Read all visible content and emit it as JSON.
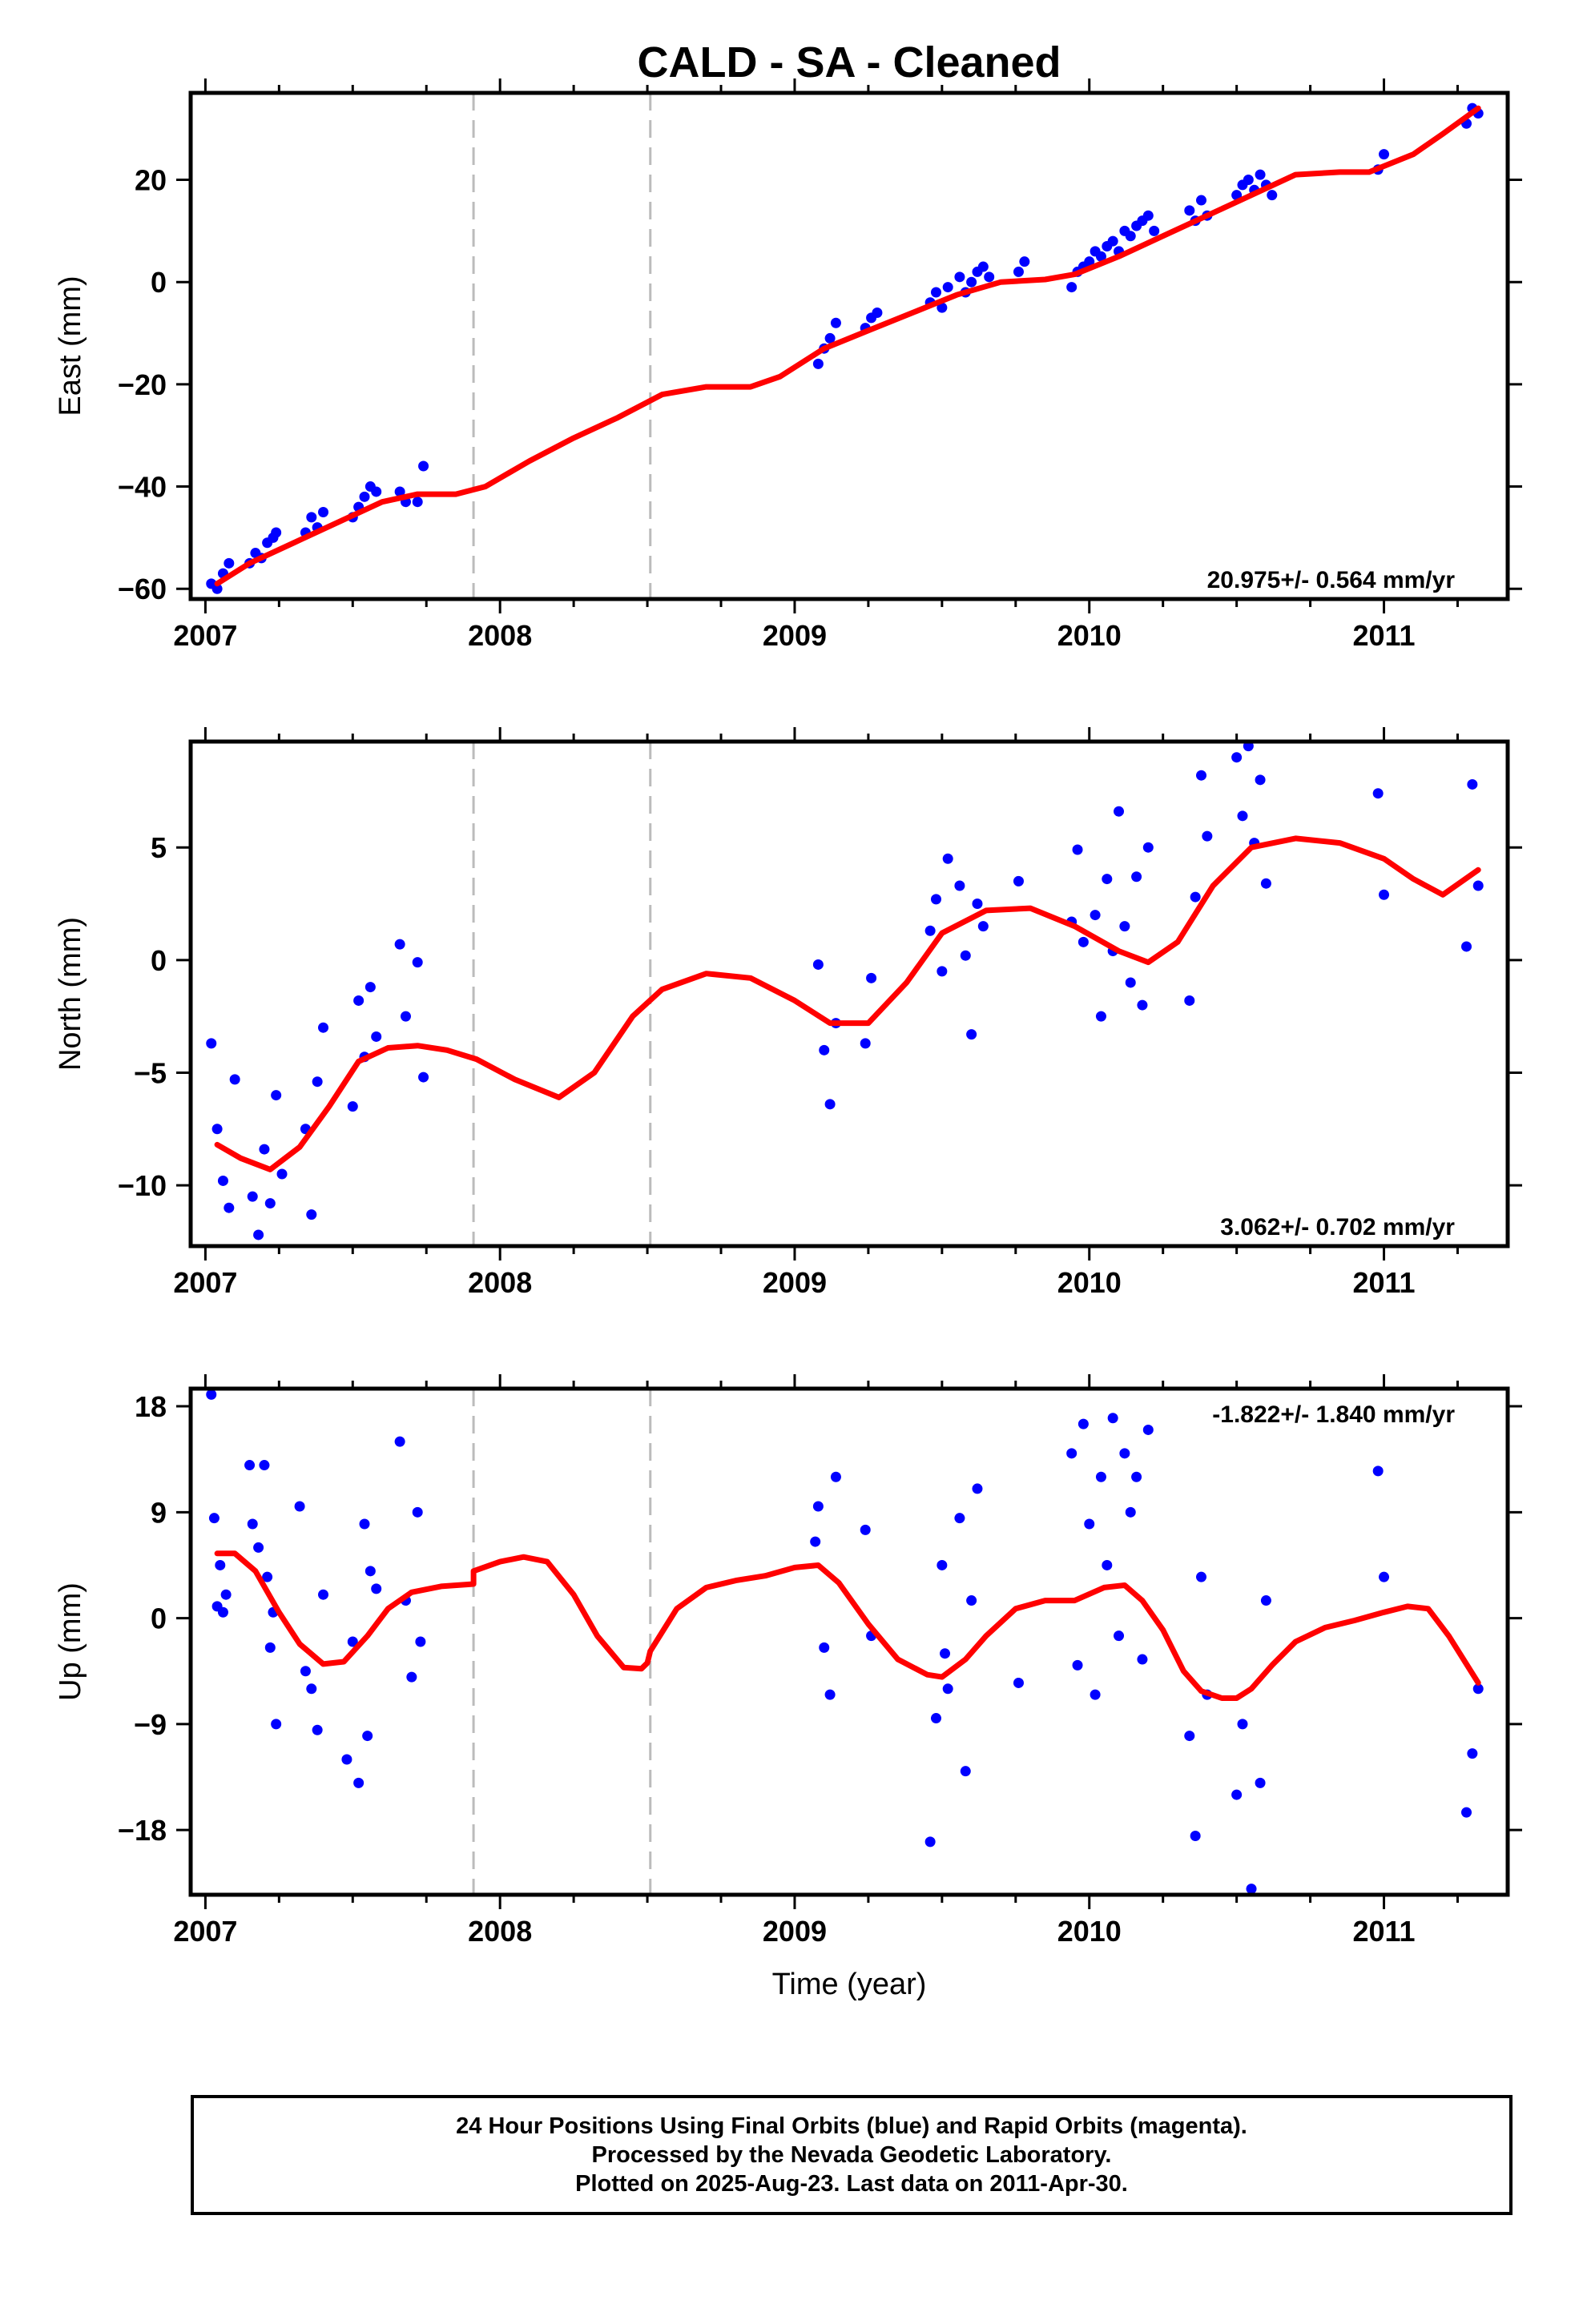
{
  "title": "CALD  - SA - Cleaned",
  "colors": {
    "fit": "#ff0000",
    "final_orbits": "#0000ff",
    "rapid_orbits": "#ff00ff",
    "frame": "#000000",
    "event_line": "#bbbbbb"
  },
  "caption": {
    "line1": "24 Hour Positions Using Final Orbits (blue) and Rapid Orbits (magenta).",
    "line2": "Processed by the Nevada Geodetic Laboratory.",
    "line3": "Plotted on 2025-Aug-23. Last data on 2011-Apr-30."
  },
  "chart_data": [
    {
      "type": "scatter",
      "title": "CALD  - SA - Cleaned",
      "ylabel": "East (mm)",
      "xlabel": "",
      "xlim": [
        2006.95,
        2011.42
      ],
      "ylim": [
        -62,
        37
      ],
      "x_ticks": [
        "2007",
        "2008",
        "2009",
        "2010",
        "2011"
      ],
      "y_ticks": [
        "20",
        "0",
        "−20",
        "−40",
        "−60"
      ],
      "y_tick_values": [
        20,
        0,
        -20,
        -40,
        -60
      ],
      "rate_label": "20.975+/- 0.564 mm/yr",
      "rate_label_position": "bottom-right",
      "event_lines": [
        2007.91,
        2008.51
      ],
      "model": {
        "name": "",
        "x": [
          2007.04,
          2007.15,
          2007.3,
          2007.45,
          2007.6,
          2007.72,
          2007.85,
          2007.95,
          2008.1,
          2008.25,
          2008.4,
          2008.55,
          2008.7,
          2008.85,
          2008.95,
          2009.1,
          2009.25,
          2009.4,
          2009.55,
          2009.7,
          2009.85,
          2009.95,
          2010.1,
          2010.25,
          2010.4,
          2010.55,
          2010.7,
          2010.85,
          2010.95,
          2011.1,
          2011.2,
          2011.32
        ],
        "y": [
          -59,
          -55,
          -51,
          -47,
          -43,
          -41.5,
          -41.5,
          -40,
          -35,
          -30.5,
          -26.5,
          -22,
          -20.5,
          -20.5,
          -18.5,
          -13,
          -9.5,
          -6,
          -2.5,
          0,
          0.5,
          1.5,
          5,
          9,
          13,
          17,
          21,
          21.5,
          21.5,
          25,
          29,
          34
        ]
      },
      "series": [
        {
          "name": "",
          "x": [
            2007.02,
            2007.04,
            2007.06,
            2007.08,
            2007.15,
            2007.17,
            2007.19,
            2007.21,
            2007.23,
            2007.24,
            2007.34,
            2007.36,
            2007.38,
            2007.4,
            2007.5,
            2007.52,
            2007.54,
            2007.56,
            2007.58,
            2007.66,
            2007.68,
            2007.72,
            2007.74,
            2009.08,
            2009.1,
            2009.12,
            2009.14,
            2009.24,
            2009.26,
            2009.28,
            2009.46,
            2009.48,
            2009.5,
            2009.52,
            2009.56,
            2009.58,
            2009.6,
            2009.62,
            2009.64,
            2009.66,
            2009.76,
            2009.78,
            2009.94,
            2009.96,
            2009.98,
            2010.0,
            2010.02,
            2010.04,
            2010.06,
            2010.08,
            2010.1,
            2010.12,
            2010.14,
            2010.16,
            2010.18,
            2010.2,
            2010.22,
            2010.34,
            2010.36,
            2010.38,
            2010.4,
            2010.5,
            2010.52,
            2010.54,
            2010.56,
            2010.58,
            2010.6,
            2010.62,
            2010.98,
            2011.0,
            2011.28,
            2011.3,
            2011.32
          ],
          "y": [
            -59,
            -60,
            -57,
            -55,
            -55,
            -53,
            -54,
            -51,
            -50,
            -49,
            -49,
            -46,
            -48,
            -45,
            -46,
            -44,
            -42,
            -40,
            -41,
            -41,
            -43,
            -43,
            -36,
            -16,
            -13,
            -11,
            -8,
            -9,
            -7,
            -6,
            -4,
            -2,
            -5,
            -1,
            1,
            -2,
            0,
            2,
            3,
            1,
            2,
            4,
            -1,
            2,
            3,
            4,
            6,
            5,
            7,
            8,
            6,
            10,
            9,
            11,
            12,
            13,
            10,
            14,
            12,
            16,
            13,
            17,
            19,
            20,
            18,
            21,
            19,
            17,
            22,
            25,
            31,
            34,
            33
          ]
        }
      ]
    },
    {
      "type": "scatter",
      "ylabel": "North (mm)",
      "xlabel": "",
      "xlim": [
        2006.95,
        2011.42
      ],
      "ylim": [
        -12.7,
        9.7
      ],
      "x_ticks": [
        "2007",
        "2008",
        "2009",
        "2010",
        "2011"
      ],
      "y_ticks": [
        "5",
        "0",
        "−5",
        "−10"
      ],
      "y_tick_values": [
        5,
        0,
        -5,
        -10
      ],
      "rate_label": "3.062+/- 0.702 mm/yr",
      "rate_label_position": "bottom-right",
      "event_lines": [
        2007.91,
        2008.51
      ],
      "model": {
        "name": "",
        "x": [
          2007.04,
          2007.12,
          2007.22,
          2007.32,
          2007.42,
          2007.52,
          2007.62,
          2007.72,
          2007.82,
          2007.92,
          2008.05,
          2008.2,
          2008.32,
          2008.45,
          2008.55,
          2008.7,
          2008.85,
          2009.0,
          2009.12,
          2009.25,
          2009.38,
          2009.5,
          2009.65,
          2009.8,
          2009.95,
          2010.1,
          2010.2,
          2010.3,
          2010.42,
          2010.55,
          2010.7,
          2010.85,
          2011.0,
          2011.1,
          2011.2,
          2011.32
        ],
        "y": [
          -8.2,
          -8.8,
          -9.3,
          -8.3,
          -6.5,
          -4.5,
          -3.9,
          -3.8,
          -4.0,
          -4.4,
          -5.3,
          -6.1,
          -5.0,
          -2.5,
          -1.3,
          -0.6,
          -0.8,
          -1.8,
          -2.8,
          -2.8,
          -1.0,
          1.2,
          2.2,
          2.3,
          1.5,
          0.4,
          -0.1,
          0.8,
          3.3,
          5.0,
          5.4,
          5.2,
          4.5,
          3.6,
          2.9,
          4.0
        ]
      },
      "series": [
        {
          "name": "",
          "x": [
            2007.02,
            2007.04,
            2007.06,
            2007.08,
            2007.1,
            2007.16,
            2007.18,
            2007.2,
            2007.22,
            2007.24,
            2007.26,
            2007.34,
            2007.36,
            2007.38,
            2007.4,
            2007.5,
            2007.52,
            2007.54,
            2007.56,
            2007.58,
            2007.66,
            2007.68,
            2007.72,
            2007.74,
            2009.08,
            2009.1,
            2009.12,
            2009.14,
            2009.24,
            2009.26,
            2009.46,
            2009.48,
            2009.5,
            2009.52,
            2009.56,
            2009.58,
            2009.6,
            2009.62,
            2009.64,
            2009.76,
            2009.94,
            2009.96,
            2009.98,
            2010.02,
            2010.04,
            2010.06,
            2010.08,
            2010.1,
            2010.12,
            2010.14,
            2010.16,
            2010.18,
            2010.2,
            2010.34,
            2010.36,
            2010.38,
            2010.4,
            2010.5,
            2010.52,
            2010.54,
            2010.56,
            2010.58,
            2010.6,
            2010.98,
            2011.0,
            2011.28,
            2011.3,
            2011.32
          ],
          "y": [
            -3.7,
            -7.5,
            -9.8,
            -11.0,
            -5.3,
            -10.5,
            -12.2,
            -8.4,
            -10.8,
            -6.0,
            -9.5,
            -7.5,
            -11.3,
            -5.4,
            -3.0,
            -6.5,
            -1.8,
            -4.3,
            -1.2,
            -3.4,
            0.7,
            -2.5,
            -0.1,
            -5.2,
            -0.2,
            -4.0,
            -6.4,
            -2.8,
            -3.7,
            -0.8,
            1.3,
            2.7,
            -0.5,
            4.5,
            3.3,
            0.2,
            -3.3,
            2.5,
            1.5,
            3.5,
            1.7,
            4.9,
            0.8,
            2.0,
            -2.5,
            3.6,
            0.4,
            6.6,
            1.5,
            -1.0,
            3.7,
            -2.0,
            5.0,
            -1.8,
            2.8,
            8.2,
            5.5,
            9.0,
            6.4,
            9.5,
            5.2,
            8.0,
            3.4,
            7.4,
            2.9,
            0.6,
            7.8,
            3.3
          ]
        }
      ]
    },
    {
      "type": "scatter",
      "ylabel": "Up (mm)",
      "xlabel": "Time (year)",
      "xlim": [
        2006.95,
        2011.42
      ],
      "ylim": [
        -23.5,
        19.5
      ],
      "x_ticks": [
        "2007",
        "2008",
        "2009",
        "2010",
        "2011"
      ],
      "y_ticks": [
        "18",
        "9",
        "0",
        "−9",
        "−18"
      ],
      "y_tick_values": [
        18,
        9,
        0,
        -9,
        -18
      ],
      "rate_label": "-1.822+/- 1.840 mm/yr",
      "rate_label_position": "top-right",
      "event_lines": [
        2007.91,
        2008.51
      ],
      "model": {
        "name": "",
        "x": [
          2007.04,
          2007.1,
          2007.17,
          2007.25,
          2007.32,
          2007.4,
          2007.47,
          2007.55,
          2007.62,
          2007.7,
          2007.8,
          2007.91,
          2007.91,
          2008.0,
          2008.08,
          2008.16,
          2008.25,
          2008.33,
          2008.42,
          2008.48,
          2008.5,
          2008.51,
          2008.6,
          2008.7,
          2008.8,
          2008.9,
          2009.0,
          2009.08,
          2009.15,
          2009.25,
          2009.35,
          2009.45,
          2009.5,
          2009.58,
          2009.65,
          2009.75,
          2009.85,
          2009.95,
          2010.05,
          2010.12,
          2010.18,
          2010.25,
          2010.32,
          2010.38,
          2010.45,
          2010.5,
          2010.55,
          2010.62,
          2010.7,
          2010.8,
          2010.9,
          2011.0,
          2011.08,
          2011.15,
          2011.22,
          2011.32
        ],
        "y": [
          5.5,
          5.5,
          4.0,
          0.5,
          -2.2,
          -3.9,
          -3.7,
          -1.5,
          0.8,
          2.2,
          2.7,
          2.9,
          4.0,
          4.8,
          5.2,
          4.8,
          2.0,
          -1.5,
          -4.2,
          -4.3,
          -3.8,
          -2.8,
          0.8,
          2.6,
          3.2,
          3.6,
          4.3,
          4.5,
          3.0,
          -0.5,
          -3.5,
          -4.8,
          -5.0,
          -3.5,
          -1.5,
          0.8,
          1.5,
          1.5,
          2.6,
          2.8,
          1.5,
          -1.0,
          -4.5,
          -6.2,
          -6.8,
          -6.8,
          -6.0,
          -4.0,
          -2.0,
          -0.8,
          -0.2,
          0.5,
          1.0,
          0.8,
          -1.5,
          -5.5
        ]
      },
      "series": [
        {
          "name": "",
          "x": [
            2007.02,
            2007.03,
            2007.04,
            2007.05,
            2007.06,
            2007.07,
            2007.15,
            2007.16,
            2007.18,
            2007.2,
            2007.21,
            2007.22,
            2007.23,
            2007.24,
            2007.32,
            2007.34,
            2007.36,
            2007.38,
            2007.4,
            2007.48,
            2007.5,
            2007.52,
            2007.54,
            2007.55,
            2007.56,
            2007.58,
            2007.66,
            2007.68,
            2007.7,
            2007.72,
            2007.73,
            2009.07,
            2009.08,
            2009.1,
            2009.12,
            2009.14,
            2009.24,
            2009.26,
            2009.46,
            2009.48,
            2009.5,
            2009.51,
            2009.52,
            2009.56,
            2009.58,
            2009.6,
            2009.62,
            2009.76,
            2009.94,
            2009.96,
            2009.98,
            2010.0,
            2010.02,
            2010.04,
            2010.06,
            2010.08,
            2010.1,
            2010.12,
            2010.14,
            2010.16,
            2010.18,
            2010.2,
            2010.34,
            2010.36,
            2010.38,
            2010.4,
            2010.5,
            2010.52,
            2010.55,
            2010.58,
            2010.6,
            2010.98,
            2011.0,
            2011.28,
            2011.3,
            2011.32
          ],
          "y": [
            19.0,
            8.5,
            1.0,
            4.5,
            0.5,
            2.0,
            13.0,
            8.0,
            6.0,
            13.0,
            3.5,
            -2.5,
            0.5,
            -9.0,
            9.5,
            -4.5,
            -6.0,
            -9.5,
            2.0,
            -12.0,
            -2.0,
            -14.0,
            8.0,
            -10.0,
            4.0,
            2.5,
            15.0,
            1.5,
            -5.0,
            9.0,
            -2.0,
            6.5,
            9.5,
            -2.5,
            -6.5,
            12.0,
            7.5,
            -1.5,
            -19.0,
            -8.5,
            4.5,
            -3.0,
            -6.0,
            8.5,
            -13.0,
            1.5,
            11.0,
            -5.5,
            14.0,
            -4.0,
            16.5,
            8.0,
            -6.5,
            12.0,
            4.5,
            17.0,
            -1.5,
            14.0,
            9.0,
            12.0,
            -3.5,
            16.0,
            -10.0,
            -18.5,
            3.5,
            -6.5,
            -15.0,
            -9.0,
            -23.0,
            -14.0,
            1.5,
            12.5,
            3.5,
            -16.5,
            -11.5,
            -6.0
          ]
        }
      ]
    }
  ]
}
